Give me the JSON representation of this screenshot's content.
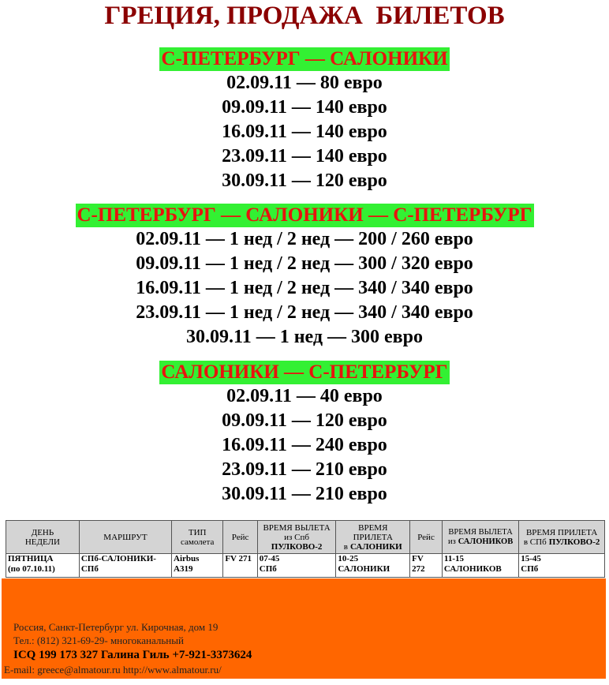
{
  "title": "ГРЕЦИЯ, ПРОДАЖА  БИЛЕТОВ",
  "sections": [
    {
      "heading": "С-ПЕТЕРБУРГ — САЛОНИКИ",
      "lines": [
        "02.09.11 — 80 евро",
        "09.09.11 — 140 евро",
        "16.09.11 — 140 евро",
        "23.09.11 — 140 евро",
        "30.09.11 — 120 евро"
      ]
    },
    {
      "heading": "С-ПЕТЕРБУРГ — САЛОНИКИ — С-ПЕТЕРБУРГ",
      "lines": [
        "02.09.11 — 1 нед / 2 нед — 200 / 260 евро",
        "09.09.11 — 1 нед / 2 нед — 300 / 320 евро",
        "16.09.11 — 1 нед / 2 нед — 340 / 340 евро",
        "23.09.11 — 1 нед / 2 нед — 340 / 340 евро",
        "30.09.11 — 1 нед — 300 евро"
      ]
    },
    {
      "heading": "САЛОНИКИ — С-ПЕТЕРБУРГ",
      "lines": [
        "02.09.11 — 40 евро",
        "09.09.11 — 120 евро",
        "16.09.11 — 240 евро",
        "23.09.11 — 210 евро",
        "30.09.11 — 210 евро"
      ]
    }
  ],
  "table": {
    "header": [
      [
        [
          "ДЕНЬ"
        ],
        [
          "НЕДЕЛИ"
        ]
      ],
      [
        [
          "МАРШРУТ"
        ]
      ],
      [
        [
          "ТИП"
        ],
        [
          "самолета"
        ]
      ],
      [
        [
          "Рейс"
        ]
      ],
      [
        [
          "ВРЕМЯ ВЫЛЕТА"
        ],
        [
          "из Спб"
        ],
        [
          "ПУЛКОВО-2"
        ]
      ],
      [
        [
          "ВРЕМЯ"
        ],
        [
          "ПРИЛЕТА"
        ],
        [
          "в",
          "САЛОНИКИ"
        ]
      ],
      [
        [
          "Рейс"
        ]
      ],
      [
        [
          "ВРЕМЯ ВЫЛЕТА"
        ],
        [
          "из",
          "САЛОНИКОВ"
        ]
      ],
      [
        [
          "ВРЕМЯ ПРИЛЕТА"
        ],
        [
          "в СПб",
          "ПУЛКОВО-2"
        ]
      ]
    ],
    "rows": [
      [
        [
          [
            "ПЯТНИЦА"
          ],
          [
            "(по 07.10.11)"
          ]
        ],
        [
          [
            "СПб-САЛОНИКИ-"
          ],
          [
            "СПб"
          ]
        ],
        [
          [
            "Airbus"
          ],
          [
            "A319"
          ]
        ],
        [
          [
            "FV 271"
          ]
        ],
        [
          [
            "07-45"
          ],
          [
            "СПб"
          ]
        ],
        [
          [
            "10-25"
          ],
          [
            "САЛОНИКИ"
          ]
        ],
        [
          [
            "FV"
          ],
          [
            "272"
          ]
        ],
        [
          [
            "11-15"
          ],
          [
            "САЛОНИКОВ"
          ]
        ],
        [
          [
            "15-45"
          ],
          [
            "СПб"
          ]
        ]
      ]
    ]
  },
  "footer": {
    "lines": [
      "Россия, Санкт-Петербург ул. Кирочная, дом 19",
      "Тел.: (812) 321-69-29- многоканальный",
      "ICQ 199 173 327 Галина Гиль +7-921-3373624",
      "E-mail: greece@almatour.ru  http://www.almatour.ru/"
    ]
  }
}
